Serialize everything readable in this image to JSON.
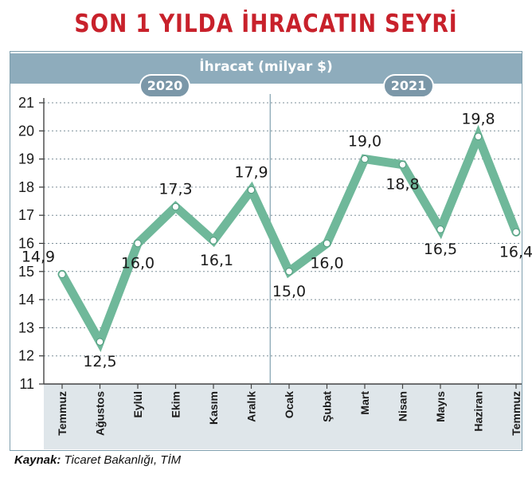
{
  "title": "SON 1 YILDA İHRACATIN SEYRİ",
  "source": {
    "label": "Kaynak:",
    "text": " Ticaret Bakanlığı, TİM"
  },
  "years": [
    "2020",
    "2021"
  ],
  "colors": {
    "title": "#c8212b",
    "line": "#6fb89a",
    "band": "#8eacbc"
  },
  "chart_data": {
    "type": "line",
    "title": "SON 1 YILDA İHRACATIN SEYRİ",
    "ylabel": "İhracat (milyar $)",
    "xlabel": "",
    "categories": [
      "Temmuz",
      "Ağustos",
      "Eylül",
      "Ekim",
      "Kasım",
      "Aralık",
      "Ocak",
      "Şubat",
      "Mart",
      "Nisan",
      "Mayıs",
      "Haziran",
      "Temmuz"
    ],
    "values": [
      14.9,
      12.5,
      16.0,
      17.3,
      16.1,
      17.9,
      15.0,
      16.0,
      19.0,
      18.8,
      16.5,
      19.8,
      16.4
    ],
    "value_labels": [
      "14,9",
      "12,5",
      "16,0",
      "17,3",
      "16,1",
      "17,9",
      "15,0",
      "16,0",
      "19,0",
      "18,8",
      "16,5",
      "19,8",
      "16,4"
    ],
    "ylim": [
      11,
      21
    ],
    "yticks": [
      11,
      12,
      13,
      14,
      15,
      16,
      17,
      18,
      19,
      20,
      21
    ],
    "grid": true,
    "legend": "none"
  }
}
